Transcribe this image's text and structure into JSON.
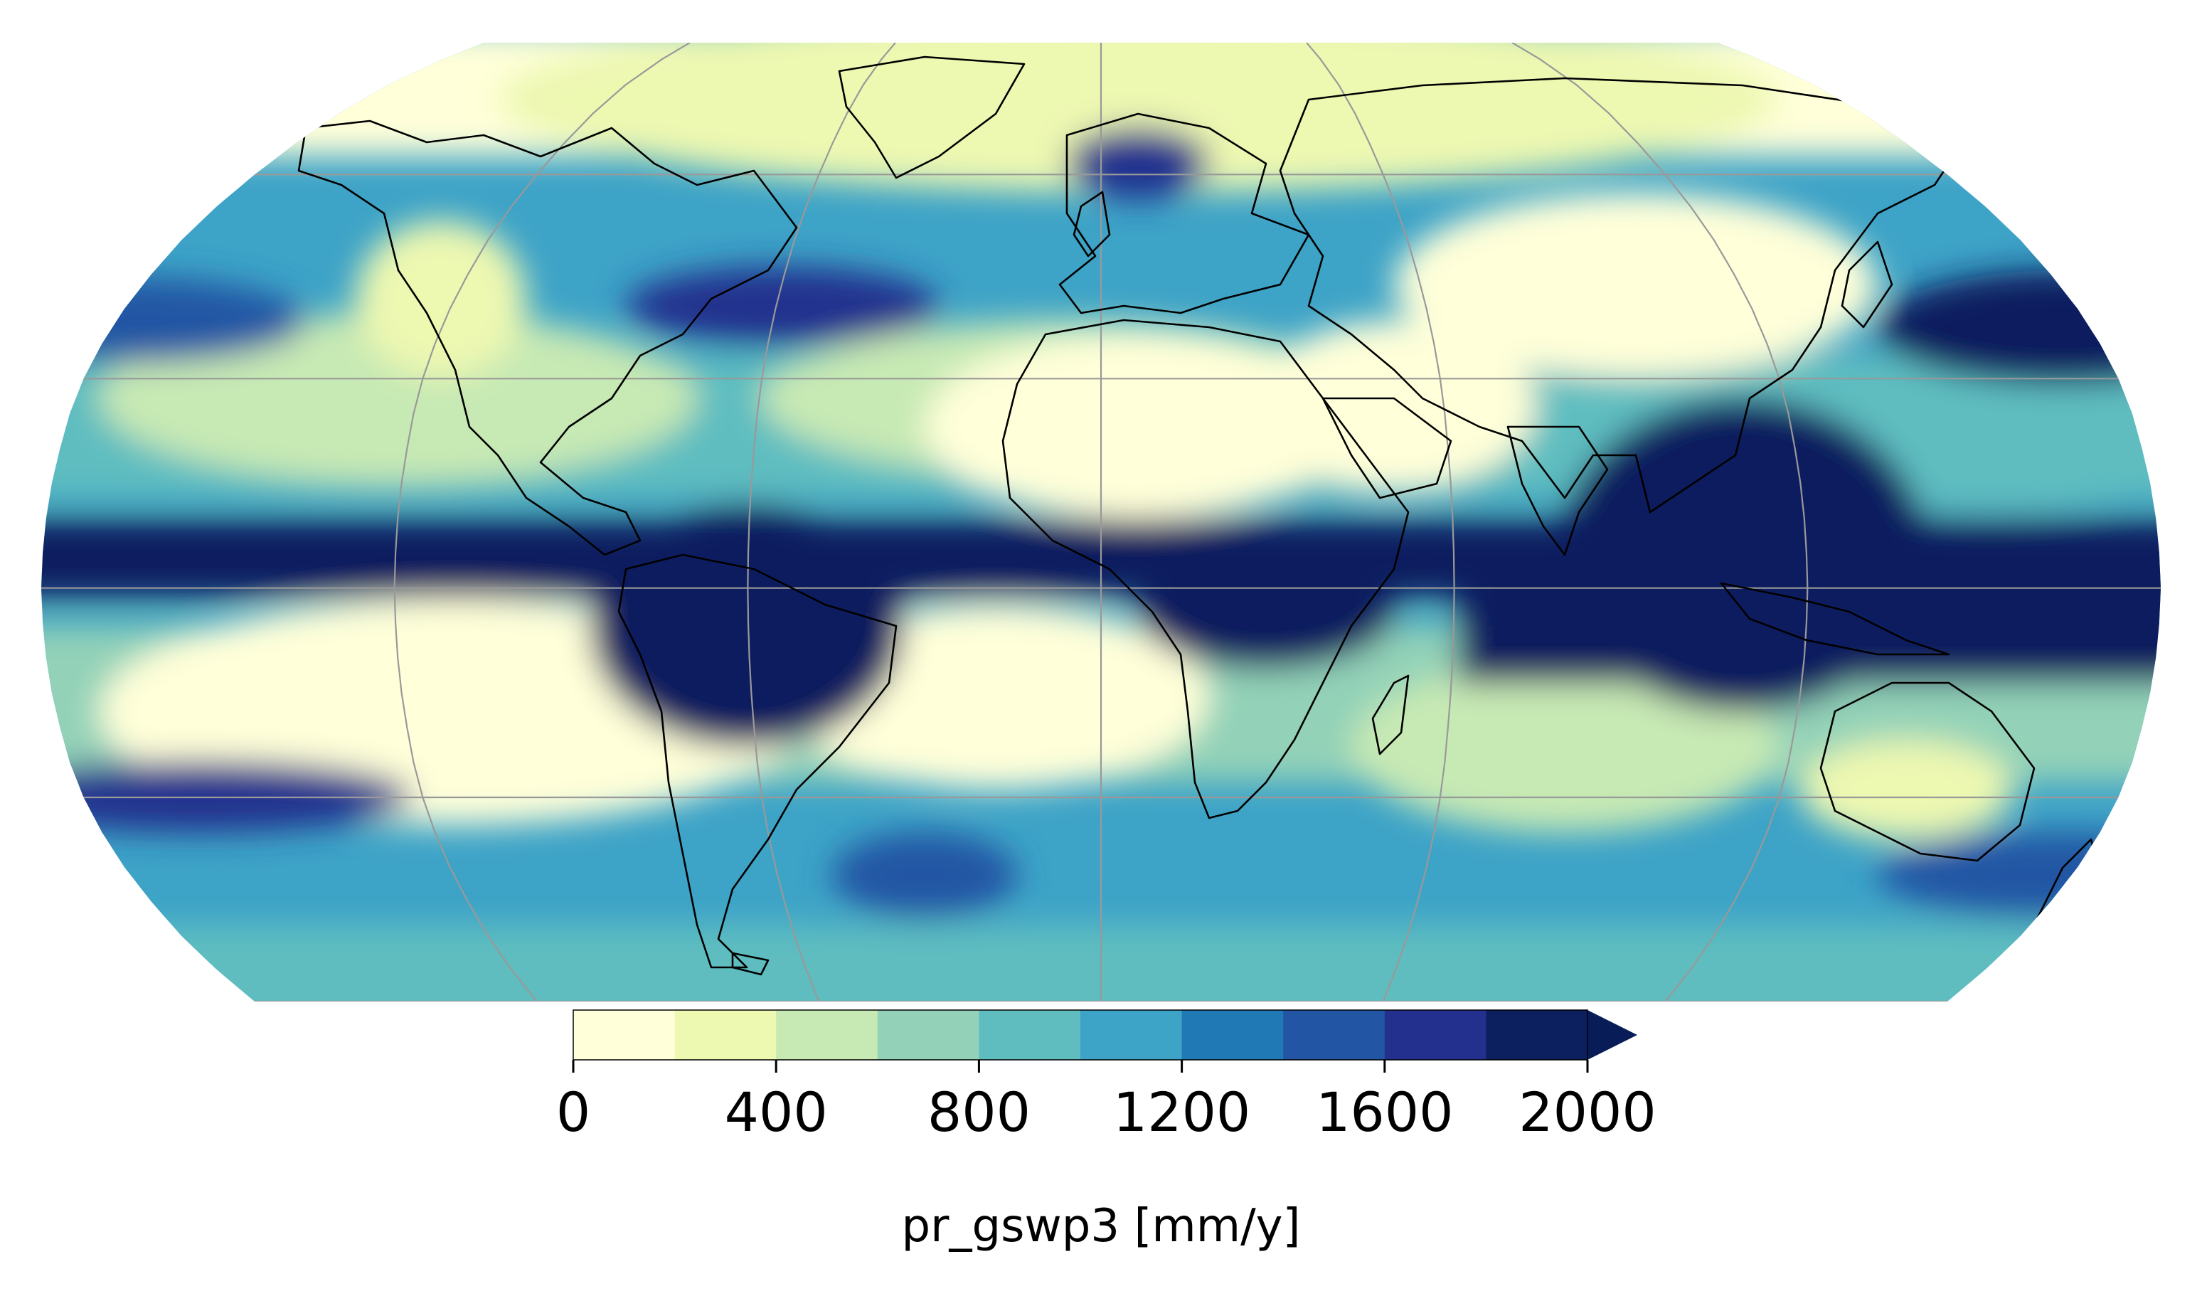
{
  "map": {
    "projection": "Robinson",
    "central_longitude": 0,
    "gridlines": {
      "color": "#999999",
      "meridians_deg": [
        -120,
        -60,
        0,
        60,
        120
      ],
      "parallels_deg": [
        -60,
        -30,
        0,
        30,
        60
      ]
    },
    "coastlines": true
  },
  "colorbar": {
    "label": "pr_gswp3 [mm/y]",
    "boundaries": [
      0,
      200,
      400,
      600,
      800,
      1000,
      1200,
      1400,
      1600,
      1800,
      2000
    ],
    "extend": "max",
    "colors": [
      "#ffffd9",
      "#edf8b1",
      "#c7e9b4",
      "#93d2b8",
      "#5fbdc0",
      "#3da3c7",
      "#2079b5",
      "#2256a4",
      "#24308e",
      "#0c1f5f"
    ],
    "over_color": "#081d58",
    "tick_labels": [
      "0",
      "400",
      "800",
      "1200",
      "1600",
      "2000"
    ]
  }
}
